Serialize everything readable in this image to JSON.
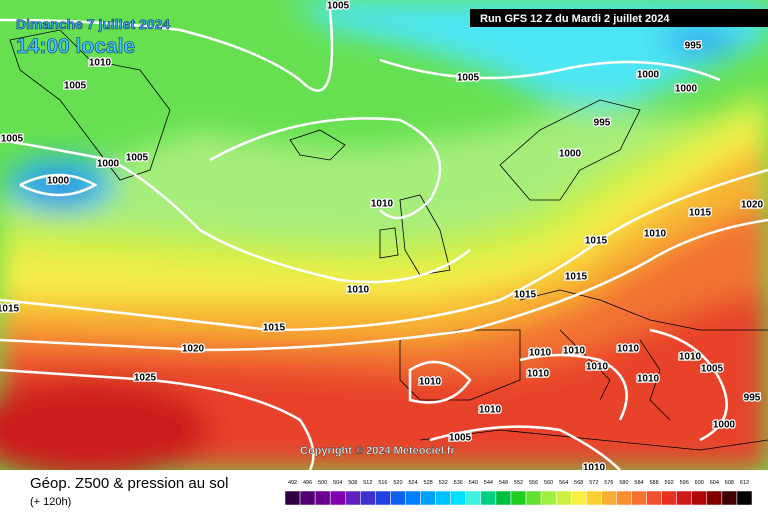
{
  "header": {
    "date": "Dimanche 7 juillet 2024",
    "time": "14:00 locale",
    "run": "Run GFS 12 Z du Mardi 2 juillet 2024"
  },
  "map": {
    "isobar_labels": [
      1005,
      1010,
      1005,
      1005,
      1000,
      1005,
      1000,
      1005,
      1000,
      1000,
      995,
      995,
      1000,
      1010,
      1015,
      1020,
      1010,
      1015,
      1015,
      1015,
      1010,
      1015,
      1015,
      1020,
      1025,
      1010,
      1010,
      1010,
      1010,
      1010,
      1005,
      1010,
      1010,
      1010,
      995,
      1010,
      1000,
      1005,
      1010
    ],
    "copyright": "Copyright © 2024 Meteociel.fr"
  },
  "footer": {
    "title": "Géop. Z500 & pression au sol",
    "lead": "(+ 120h)",
    "scale": [
      492,
      496,
      500,
      504,
      508,
      512,
      516,
      520,
      524,
      528,
      532,
      536,
      540,
      544,
      548,
      552,
      556,
      560,
      564,
      568,
      572,
      576,
      580,
      584,
      588,
      592,
      596,
      600,
      604,
      608,
      612
    ]
  }
}
